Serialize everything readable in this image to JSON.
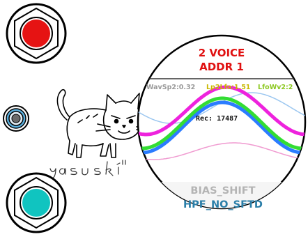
{
  "buttons": {
    "top": {
      "name": "red-button",
      "color": "#e61313"
    },
    "bottom": {
      "name": "teal-button",
      "color": "#10c4c0"
    }
  },
  "jack": {
    "color": "#5aaedc"
  },
  "logo": {
    "signature_text": "yasuski",
    "suffix": "II"
  },
  "display": {
    "voice": "2 VOICE",
    "addr": "ADDR 1",
    "params": [
      {
        "label": "WavSp2:0.32",
        "color": "#9a9a9a"
      },
      {
        "label": "Lp2Lfo:1.51",
        "color": "#c9b800"
      },
      {
        "label": "LfoWv2:2",
        "color": "#8cc820"
      }
    ],
    "rec": "Rec: 17487",
    "bias": "BIAS_SHIFT",
    "hpf": "HPF_NO_SFTD",
    "wave_colors": {
      "magenta": "#ee22dd",
      "blue": "#2b7cff",
      "green": "#33dd33",
      "light_blue": "#9cc7f0",
      "pink": "#f09ad0"
    }
  }
}
